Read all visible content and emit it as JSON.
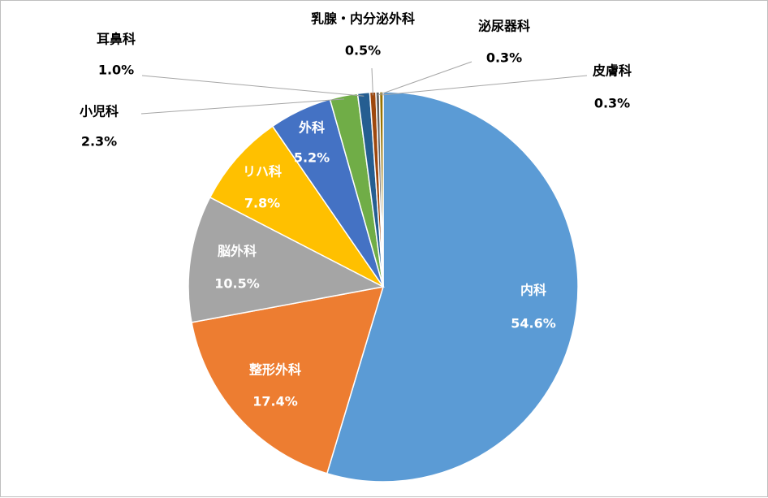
{
  "chart_data": {
    "type": "pie",
    "title": "",
    "slices": [
      {
        "label": "内科",
        "value": 54.6,
        "value_text": "54.6%",
        "color": "#5b9bd5"
      },
      {
        "label": "整形外科",
        "value": 17.4,
        "value_text": "17.4%",
        "color": "#ed7d31"
      },
      {
        "label": "脳外科",
        "value": 10.5,
        "value_text": "10.5%",
        "color": "#a5a5a5"
      },
      {
        "label": "リハ科",
        "value": 7.8,
        "value_text": "7.8%",
        "color": "#ffc000"
      },
      {
        "label": "外科",
        "value": 5.2,
        "value_text": "5.2%",
        "color": "#4472c4"
      },
      {
        "label": "小児科",
        "value": 2.3,
        "value_text": "2.3%",
        "color": "#70ad47"
      },
      {
        "label": "耳鼻科",
        "value": 1.0,
        "value_text": "1.0%",
        "color": "#255e91"
      },
      {
        "label": "乳腺・内分泌外科",
        "value": 0.5,
        "value_text": "0.5%",
        "color": "#9e480e"
      },
      {
        "label": "泌尿器科",
        "value": 0.3,
        "value_text": "0.3%",
        "color": "#636363"
      },
      {
        "label": "皮膚科",
        "value": 0.3,
        "value_text": "0.3%",
        "color": "#997300"
      }
    ],
    "legend": "none"
  }
}
